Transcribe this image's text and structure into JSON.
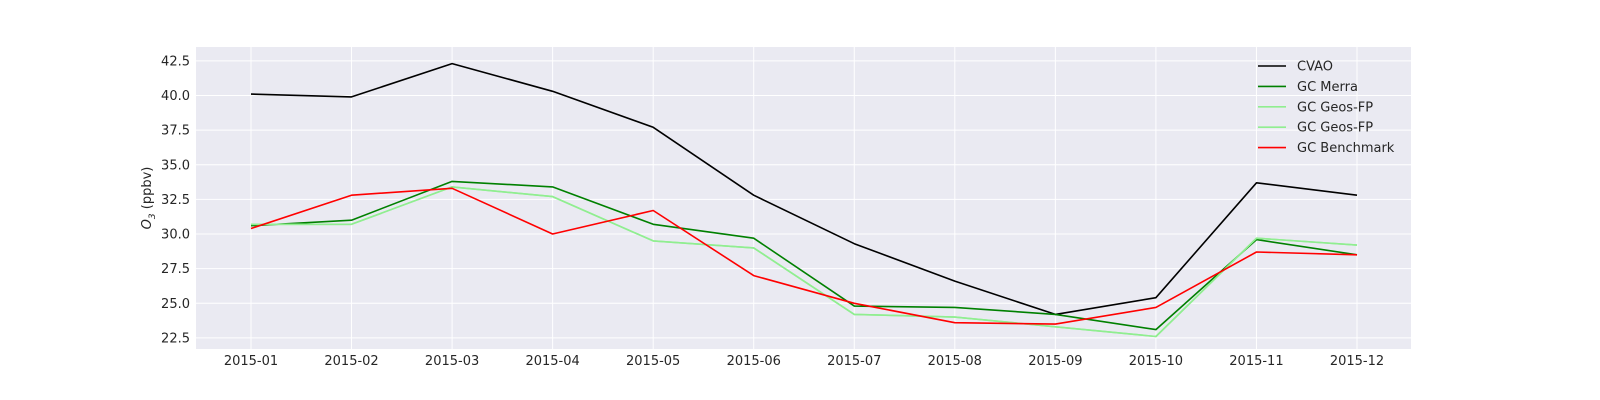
{
  "chart_data": {
    "type": "line",
    "title": "",
    "xlabel": "",
    "ylabel": "O3 (ppbv)",
    "ylabel_parts": {
      "main": "O",
      "sub": "3",
      "unit": " (ppbv)"
    },
    "categories": [
      "2015-01",
      "2015-02",
      "2015-03",
      "2015-04",
      "2015-05",
      "2015-06",
      "2015-07",
      "2015-08",
      "2015-09",
      "2015-10",
      "2015-11",
      "2015-12"
    ],
    "yticks": [
      22.5,
      25.0,
      27.5,
      30.0,
      32.5,
      35.0,
      37.5,
      40.0,
      42.5
    ],
    "ytick_labels": [
      "22.5",
      "25.0",
      "27.5",
      "30.0",
      "32.5",
      "35.0",
      "37.5",
      "40.0",
      "42.5"
    ],
    "ylim": [
      21.7,
      43.5
    ],
    "grid": true,
    "legend_position": "top-right",
    "series": [
      {
        "name": "CVAO",
        "color": "#000000",
        "values": [
          40.1,
          39.9,
          42.3,
          40.3,
          37.7,
          32.8,
          29.3,
          26.6,
          24.2,
          25.4,
          33.7,
          32.8
        ]
      },
      {
        "name": "GC Merra",
        "color": "#008000",
        "values": [
          30.6,
          31.0,
          33.8,
          33.4,
          30.7,
          29.7,
          24.8,
          24.7,
          24.2,
          23.1,
          29.6,
          28.5
        ]
      },
      {
        "name": "GC Geos-FP",
        "color": "#90ee90",
        "values": [
          30.7,
          30.7,
          33.4,
          32.7,
          29.5,
          29.0,
          24.2,
          24.0,
          23.3,
          22.6,
          29.7,
          29.2
        ]
      },
      {
        "name": "GC Geos-FP",
        "color": "#90ee90",
        "values": [
          30.7,
          30.7,
          33.4,
          32.7,
          29.5,
          29.0,
          24.2,
          24.0,
          23.3,
          22.6,
          29.7,
          29.2
        ]
      },
      {
        "name": "GC Benchmark",
        "color": "#ff0000",
        "values": [
          30.4,
          32.8,
          33.3,
          30.0,
          31.7,
          27.0,
          25.0,
          23.6,
          23.5,
          24.7,
          28.7,
          28.5
        ]
      }
    ],
    "colors": {
      "plot_background": "#eaeaf2",
      "grid": "#ffffff",
      "text": "#262626"
    }
  }
}
